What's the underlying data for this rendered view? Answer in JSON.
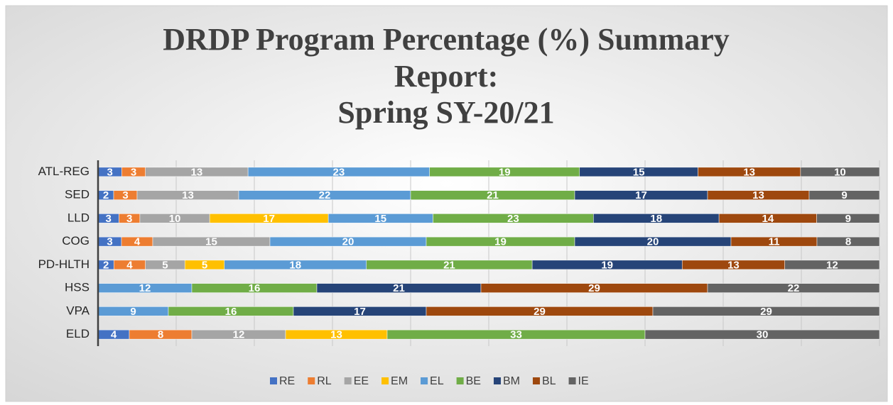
{
  "chart_data": {
    "type": "bar",
    "orientation": "horizontal",
    "stack": "percent",
    "title_lines": [
      "DRDP Program Percentage (%) Summary",
      "Report:",
      "Spring SY-20/21"
    ],
    "categories": [
      "ATL-REG",
      "SED",
      "LLD",
      "COG",
      "PD-HLTH",
      "HSS",
      "VPA",
      "ELD"
    ],
    "series": [
      {
        "name": "RE",
        "color": "#4472c4",
        "values": [
          3,
          2,
          3,
          3,
          2,
          null,
          null,
          4
        ]
      },
      {
        "name": "RL",
        "color": "#ed7d31",
        "values": [
          3,
          3,
          3,
          4,
          4,
          null,
          null,
          8
        ]
      },
      {
        "name": "EE",
        "color": "#a5a5a5",
        "values": [
          13,
          13,
          10,
          15,
          5,
          null,
          null,
          12
        ]
      },
      {
        "name": "EM",
        "color": "#ffc000",
        "values": [
          null,
          null,
          17,
          null,
          5,
          null,
          null,
          13
        ]
      },
      {
        "name": "EL",
        "color": "#5b9bd5",
        "values": [
          23,
          22,
          15,
          20,
          18,
          12,
          9,
          null
        ]
      },
      {
        "name": "BE",
        "color": "#70ad47",
        "values": [
          19,
          21,
          23,
          19,
          21,
          16,
          16,
          33
        ]
      },
      {
        "name": "BM",
        "color": "#264478",
        "values": [
          15,
          17,
          18,
          20,
          19,
          21,
          17,
          null
        ]
      },
      {
        "name": "BL",
        "color": "#9e480e",
        "values": [
          13,
          13,
          14,
          11,
          13,
          29,
          29,
          null
        ]
      },
      {
        "name": "IE",
        "color": "#636363",
        "values": [
          10,
          9,
          9,
          8,
          12,
          22,
          29,
          30
        ]
      }
    ],
    "xlim": [
      0,
      100
    ],
    "xticks": [
      0,
      10,
      20,
      30,
      40,
      50,
      60,
      70,
      80,
      90,
      100
    ],
    "show_xtick_labels": false,
    "grid": true,
    "legend": "bottom"
  }
}
